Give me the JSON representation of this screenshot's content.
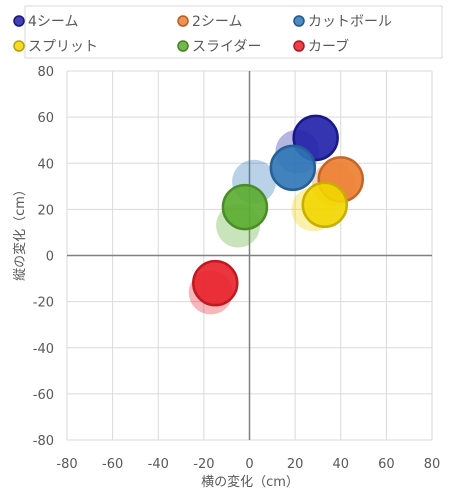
{
  "chart_data": {
    "type": "scatter",
    "xlabel": "横の変化（cm）",
    "ylabel": "縦の変化（cm）",
    "xlim": [
      -80,
      80
    ],
    "ylim": [
      -80,
      80
    ],
    "x_ticks": [
      -80,
      -60,
      -40,
      -20,
      0,
      20,
      40,
      60,
      80
    ],
    "y_ticks": [
      -80,
      -60,
      -40,
      -20,
      0,
      20,
      40,
      60,
      80
    ],
    "grid": true,
    "legend_position": "top",
    "series": [
      {
        "name": "4シーム",
        "color": "#1f1fa8",
        "points": [
          {
            "x": 21,
            "y": 45,
            "faded": true
          },
          {
            "x": 29,
            "y": 51,
            "faded": false
          }
        ]
      },
      {
        "name": "2シーム",
        "color": "#ed7d31",
        "points": [
          {
            "x": 37,
            "y": 31,
            "faded": true
          },
          {
            "x": 40,
            "y": 33,
            "faded": false
          }
        ]
      },
      {
        "name": "カットボール",
        "color": "#2e75b6",
        "points": [
          {
            "x": 2,
            "y": 32,
            "faded": true
          },
          {
            "x": 19,
            "y": 38,
            "faded": false
          }
        ]
      },
      {
        "name": "スプリット",
        "color": "#f2d600",
        "points": [
          {
            "x": 28,
            "y": 20,
            "faded": true
          },
          {
            "x": 33,
            "y": 22,
            "faded": false
          }
        ]
      },
      {
        "name": "スライダー",
        "color": "#5aac2f",
        "points": [
          {
            "x": -5,
            "y": 13,
            "faded": true
          },
          {
            "x": -2,
            "y": 21,
            "faded": false
          }
        ]
      },
      {
        "name": "カーブ",
        "color": "#e8202a",
        "points": [
          {
            "x": -17,
            "y": -16,
            "faded": true
          },
          {
            "x": -15,
            "y": -12,
            "faded": false
          }
        ]
      }
    ]
  }
}
